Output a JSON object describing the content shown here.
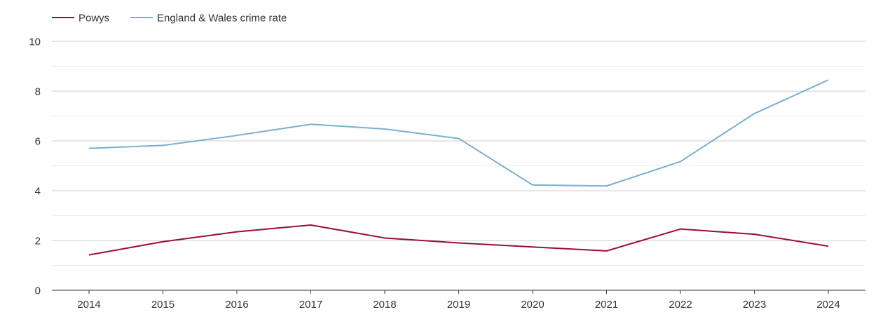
{
  "chart_data": {
    "type": "line",
    "title": "",
    "xlabel": "",
    "ylabel": "",
    "categories": [
      "2014",
      "2015",
      "2016",
      "2017",
      "2018",
      "2019",
      "2020",
      "2021",
      "2022",
      "2023",
      "2024"
    ],
    "ylim": [
      0,
      10
    ],
    "yticks": [
      "0",
      "2",
      "4",
      "6",
      "8",
      "10"
    ],
    "grid": true,
    "legend_position": "top-left",
    "series": [
      {
        "name": "Powys",
        "color": "#9b0d35",
        "values": [
          1.42,
          1.95,
          2.35,
          2.62,
          2.1,
          1.9,
          1.74,
          1.58,
          2.46,
          2.25,
          1.77
        ]
      },
      {
        "name": "England & Wales crime rate",
        "color": "#7aafd0",
        "values": [
          5.7,
          5.82,
          6.22,
          6.67,
          6.48,
          6.1,
          4.23,
          4.19,
          5.17,
          7.1,
          8.45
        ]
      }
    ]
  }
}
